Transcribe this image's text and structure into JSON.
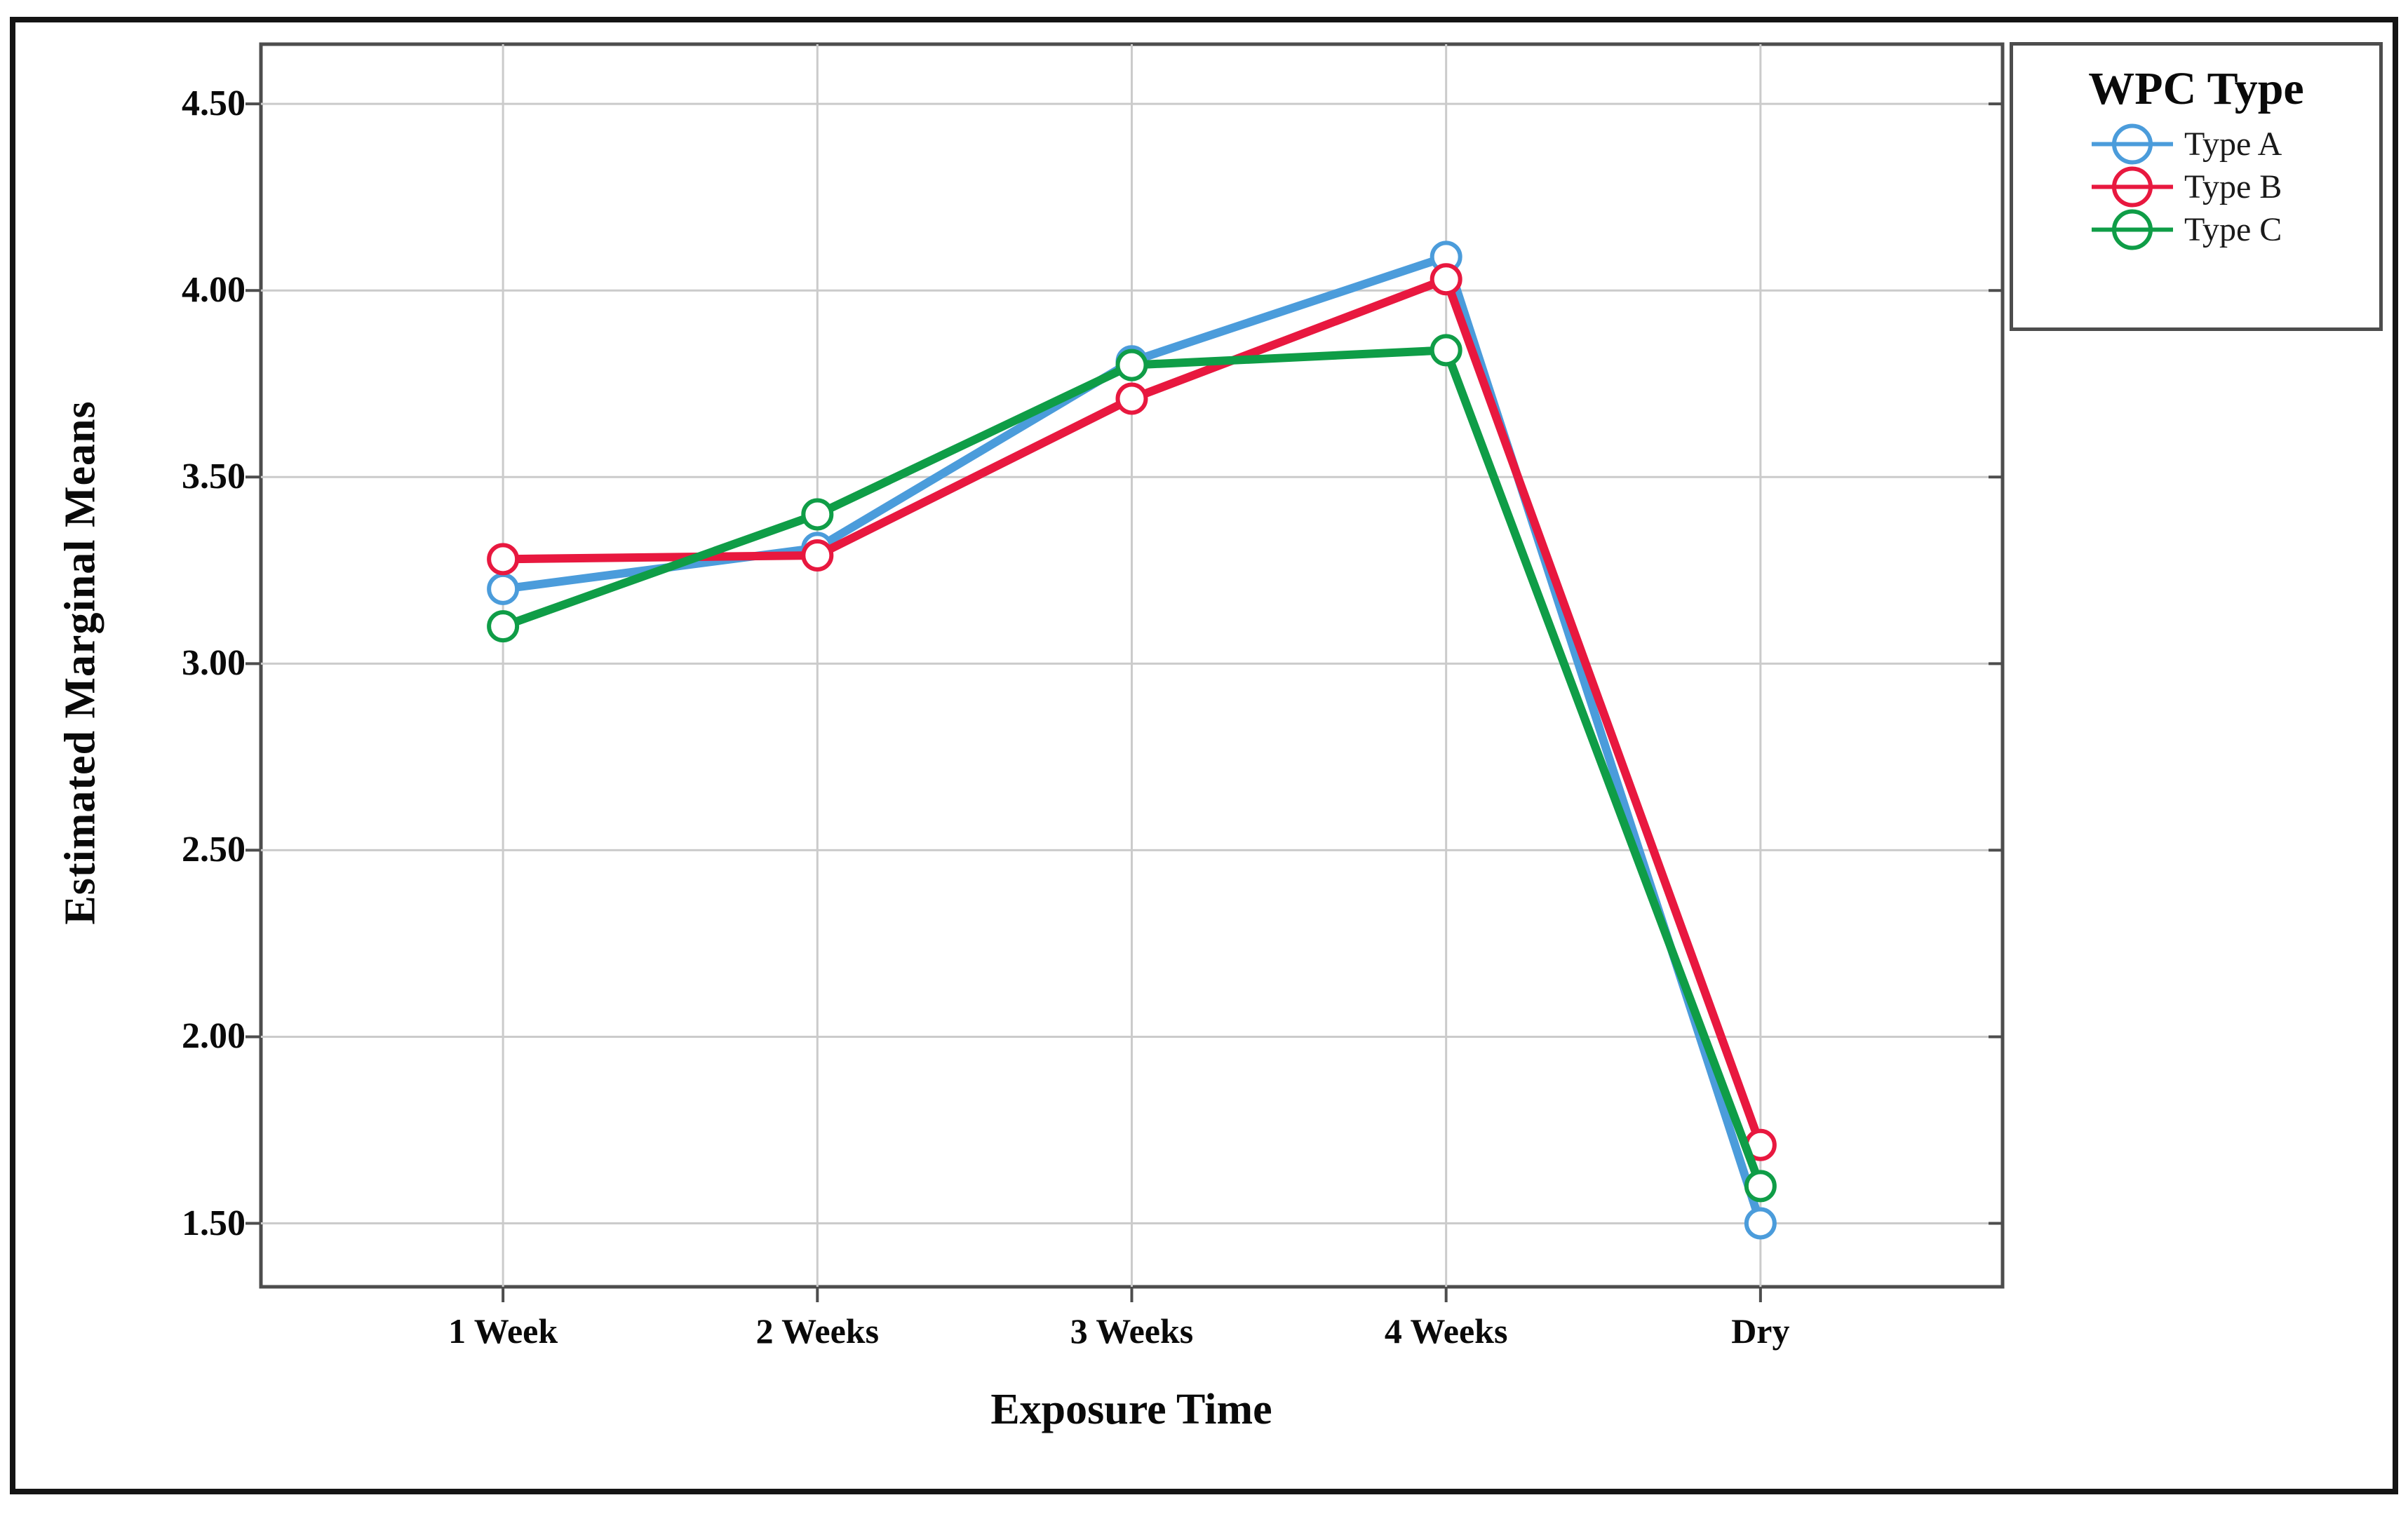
{
  "chart_data": {
    "type": "line",
    "title": "",
    "legend_title": "WPC Type",
    "xlabel": "Exposure Time",
    "ylabel": "Estimated Marginal Means",
    "categories": [
      "1 Week",
      "2 Weeks",
      "3 Weeks",
      "4 Weeks",
      "Dry"
    ],
    "series": [
      {
        "name": "Type A",
        "color": "#4B9CDB",
        "values": [
          3.2,
          3.31,
          3.81,
          4.09,
          1.5
        ]
      },
      {
        "name": "Type B",
        "color": "#E8183F",
        "values": [
          3.28,
          3.29,
          3.71,
          4.03,
          1.71
        ]
      },
      {
        "name": "Type C",
        "color": "#0F9D47",
        "values": [
          3.1,
          3.4,
          3.8,
          3.84,
          1.6
        ]
      }
    ],
    "yticks": [
      1.5,
      2.0,
      2.5,
      3.0,
      3.5,
      4.0,
      4.5
    ],
    "ylim": [
      1.33,
      4.66
    ],
    "grid": true,
    "legend_position": "outside-top-right",
    "marker": "open-circle",
    "colors": {
      "frame": "#4d4d4d",
      "gridline": "#cbcbcb",
      "outer_border": "#141414",
      "text": "#0a0a0a"
    }
  }
}
